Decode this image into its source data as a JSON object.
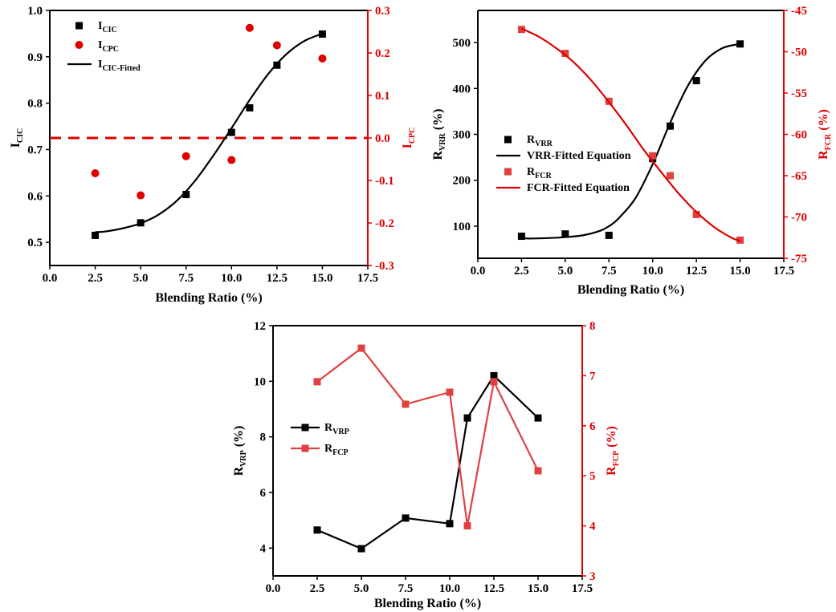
{
  "chart_data": [
    {
      "type": "scatter",
      "xlabel": "Blending Ratio (%)",
      "ylabel": "I",
      "ylabel_sub": "CIC",
      "y2label": "I",
      "y2label_sub": "CPC",
      "xlim": [
        0,
        17.5
      ],
      "ylim": [
        0.45,
        1.0
      ],
      "y2lim": [
        -0.3,
        0.3
      ],
      "xticks": [
        "0.0",
        "2.5",
        "5.0",
        "7.5",
        "10.0",
        "12.5",
        "15.0",
        "17.5"
      ],
      "yticks": [
        "0.5",
        "0.6",
        "0.7",
        "0.8",
        "0.9",
        "1.0"
      ],
      "y2ticks": [
        "-0.3",
        "-0.2",
        "-0.1",
        "0.0",
        "0.1",
        "0.2",
        "0.3"
      ],
      "reference_line_y2": 0.0,
      "legend_position": "top-left",
      "series": [
        {
          "name": "I",
          "name_sub": "CIC",
          "axis": "left",
          "marker": "square",
          "color": "#000000",
          "x": [
            2.5,
            5.0,
            7.5,
            10.0,
            11.0,
            12.5,
            15.0
          ],
          "y": [
            0.515,
            0.542,
            0.603,
            0.737,
            0.79,
            0.882,
            0.949
          ]
        },
        {
          "name": "I",
          "name_sub": "CPC",
          "axis": "right",
          "marker": "circle",
          "color": "#e00000",
          "x": [
            2.5,
            5.0,
            7.5,
            10.0,
            11.0,
            12.5,
            15.0
          ],
          "y": [
            -0.083,
            -0.135,
            -0.043,
            -0.052,
            0.259,
            0.218,
            0.187
          ]
        },
        {
          "name": "I",
          "name_sub": "CIC-Fitted",
          "axis": "left",
          "marker": "line",
          "color": "#000000",
          "x": [
            2.5,
            3,
            4,
            5,
            6,
            7,
            8,
            9,
            10,
            11,
            12,
            13,
            14,
            15
          ],
          "y": [
            0.522,
            0.523,
            0.53,
            0.541,
            0.56,
            0.59,
            0.633,
            0.687,
            0.746,
            0.807,
            0.862,
            0.905,
            0.934,
            0.95
          ]
        }
      ]
    },
    {
      "type": "scatter",
      "xlabel": "Blending Ratio (%)",
      "ylabel": "R",
      "ylabel_sub": "VRR",
      "ylabel_suffix": " (%)",
      "y2label": "R",
      "y2label_sub": "FCR",
      "y2label_suffix": " (%)",
      "xlim": [
        0,
        17.5
      ],
      "ylim": [
        30,
        570
      ],
      "y2lim": [
        -75,
        -45
      ],
      "xticks": [
        "0.0",
        "2.5",
        "5.0",
        "7.5",
        "10.0",
        "12.5",
        "15.0",
        "17.5"
      ],
      "yticks": [
        "100",
        "200",
        "300",
        "400",
        "500"
      ],
      "y2ticks": [
        "-75",
        "-70",
        "-65",
        "-60",
        "-55",
        "-50",
        "-45"
      ],
      "legend_position": "center-left",
      "series": [
        {
          "name": "R",
          "name_sub": "VRR",
          "axis": "left",
          "marker": "square",
          "color": "#000000",
          "x": [
            2.5,
            5.0,
            7.5,
            10.0,
            11.0,
            12.5,
            15.0
          ],
          "y": [
            78,
            83,
            80,
            247,
            318,
            417,
            497
          ]
        },
        {
          "name": "VRR-Fitted Equation",
          "axis": "left",
          "marker": "line",
          "color": "#000000",
          "x": [
            2.5,
            3,
            4,
            5,
            6,
            7,
            7.5,
            8,
            9,
            10,
            11,
            12,
            13,
            14,
            15
          ],
          "y": [
            74,
            73,
            74,
            76,
            80,
            90,
            100,
            115,
            160,
            235,
            325,
            405,
            460,
            488,
            497
          ]
        },
        {
          "name": "R",
          "name_sub": "FCR",
          "axis": "right",
          "marker": "square",
          "color": "#e04040",
          "x": [
            2.5,
            5.0,
            7.5,
            10.0,
            11.0,
            12.5,
            15.0
          ],
          "y": [
            -47.3,
            -50.2,
            -56.0,
            -62.6,
            -65.0,
            -69.7,
            -72.8
          ]
        },
        {
          "name": "FCR-Fitted Equation",
          "axis": "right",
          "marker": "line",
          "color": "#e00000",
          "x": [
            2.5,
            3.5,
            4.5,
            5.5,
            6.5,
            7.5,
            8.5,
            9.5,
            10.5,
            11.5,
            12.5,
            13.5,
            14.5,
            15.0
          ],
          "y": [
            -47.2,
            -48.2,
            -49.6,
            -51.3,
            -53.5,
            -56.1,
            -58.9,
            -61.9,
            -64.6,
            -67.2,
            -69.4,
            -71.2,
            -72.5,
            -72.9
          ]
        }
      ]
    },
    {
      "type": "line",
      "xlabel": "Blending Ratio (%)",
      "ylabel": "R",
      "ylabel_sub": "VRP",
      "ylabel_suffix": " (%)",
      "y2label": "R",
      "y2label_sub": "FCP",
      "y2label_suffix": " (%)",
      "xlim": [
        0,
        17.5
      ],
      "ylim": [
        3,
        12
      ],
      "y2lim": [
        3,
        8
      ],
      "xticks": [
        "0.0",
        "2.5",
        "5.0",
        "7.5",
        "10.0",
        "12.5",
        "15.0",
        "17.5"
      ],
      "yticks": [
        "4",
        "6",
        "8",
        "10",
        "12"
      ],
      "y2ticks": [
        "3",
        "4",
        "5",
        "6",
        "7",
        "8"
      ],
      "legend_position": "center-left",
      "series": [
        {
          "name": "R",
          "name_sub": "VRP",
          "axis": "left",
          "marker": "square",
          "color": "#000000",
          "x": [
            2.5,
            5.0,
            7.5,
            10.0,
            11.0,
            12.5,
            15.0
          ],
          "y": [
            4.65,
            3.98,
            5.08,
            4.88,
            8.68,
            10.2,
            8.68
          ]
        },
        {
          "name": "R",
          "name_sub": "FCP",
          "axis": "right",
          "marker": "square",
          "color": "#e04040",
          "x": [
            2.5,
            5.0,
            7.5,
            10.0,
            11.0,
            12.5,
            15.0
          ],
          "y": [
            6.88,
            7.55,
            6.43,
            6.67,
            4.0,
            6.88,
            5.1
          ]
        }
      ]
    }
  ]
}
